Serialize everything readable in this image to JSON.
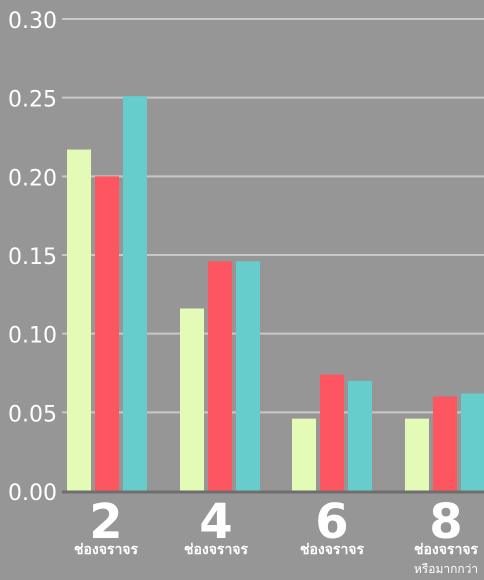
{
  "colors": {
    "background": "#969696",
    "grid": "#c8c8c8",
    "axis": "#6e6e6e",
    "series": [
      "#e3fbb6",
      "#fd5661",
      "#66cccc"
    ]
  },
  "chart_data": {
    "type": "bar",
    "categories": [
      {
        "number": "2",
        "label": "ช่องจราจร",
        "sublabel": ""
      },
      {
        "number": "4",
        "label": "ช่องจราจร",
        "sublabel": ""
      },
      {
        "number": "6",
        "label": "ช่องจราจร",
        "sublabel": ""
      },
      {
        "number": "8",
        "label": "ช่องจราจร",
        "sublabel": "หรือมากกว่า"
      }
    ],
    "series": [
      {
        "values": [
          0.217,
          0.116,
          0.046,
          0.046
        ]
      },
      {
        "values": [
          0.2,
          0.146,
          0.074,
          0.06
        ]
      },
      {
        "values": [
          0.251,
          0.146,
          0.07,
          0.062
        ]
      }
    ],
    "ylim": [
      0,
      0.3
    ],
    "yticks": [
      "0.00",
      "0.05",
      "0.10",
      "0.15",
      "0.20",
      "0.25",
      "0.30"
    ],
    "grid": true,
    "legend": "none"
  }
}
